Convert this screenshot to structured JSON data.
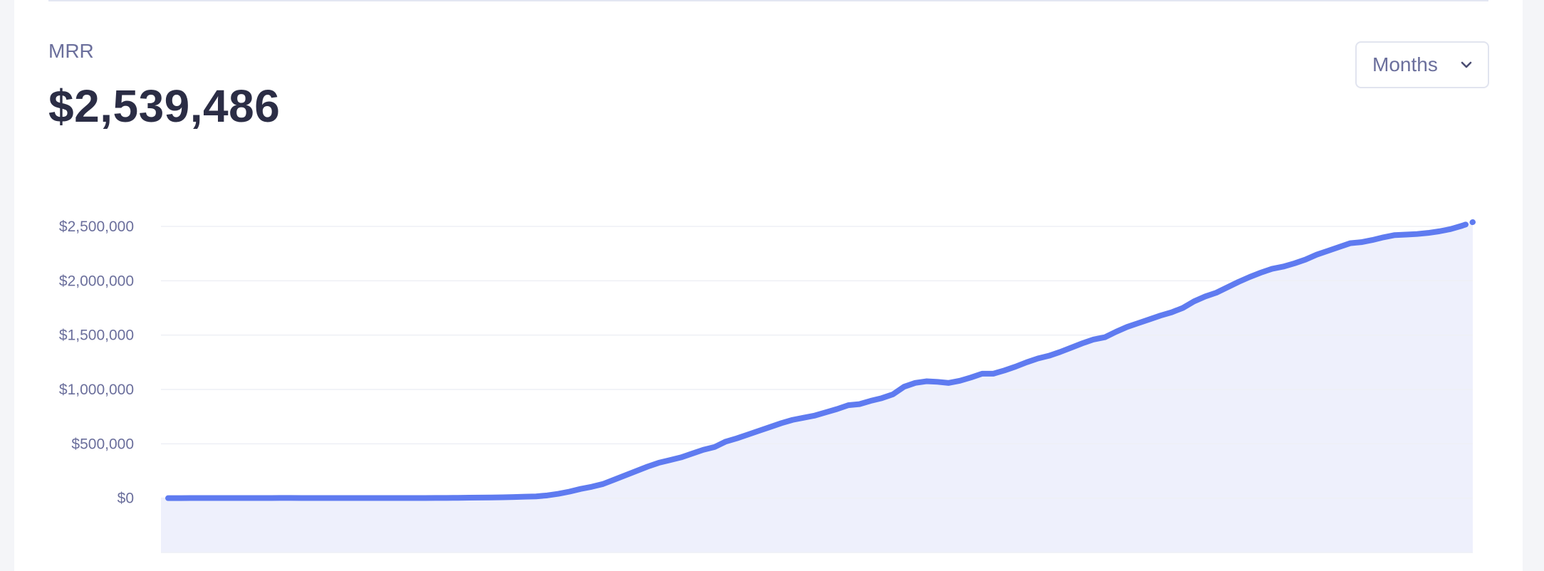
{
  "metric": {
    "label": "MRR",
    "value": "$2,539,486"
  },
  "period_select": {
    "selected": "Months",
    "icon": "chevron-down-icon"
  },
  "colors": {
    "line": "#5f7bf0",
    "area": "#eef0fc",
    "grid": "#eeeff5"
  },
  "chart_data": {
    "type": "area",
    "title": "",
    "xlabel": "",
    "ylabel": "",
    "ylim": [
      -500000,
      2500000
    ],
    "yticks": [
      0,
      500000,
      1000000,
      1500000,
      2000000,
      2500000
    ],
    "ytick_labels": [
      "$0",
      "$500,000",
      "$1,000,000",
      "$1,500,000",
      "$2,000,000",
      "$2,500,000"
    ],
    "grid": true,
    "legend": "none",
    "last_point_dashed": true,
    "series": [
      {
        "values": [
          0,
          0,
          1000,
          1000,
          1000,
          1000,
          1000,
          1000,
          1000,
          1000,
          2000,
          2000,
          1000,
          1000,
          1000,
          1000,
          1000,
          1000,
          1000,
          1000,
          1000,
          1000,
          1000,
          1000,
          2000,
          2000,
          3000,
          4000,
          5000,
          6000,
          8000,
          10000,
          13000,
          16000,
          25000,
          40000,
          60000,
          85000,
          105000,
          130000,
          170000,
          210000,
          250000,
          290000,
          325000,
          350000,
          375000,
          410000,
          445000,
          470000,
          520000,
          550000,
          585000,
          620000,
          655000,
          690000,
          720000,
          740000,
          760000,
          790000,
          820000,
          855000,
          865000,
          895000,
          920000,
          955000,
          1025000,
          1060000,
          1075000,
          1070000,
          1060000,
          1080000,
          1110000,
          1145000,
          1145000,
          1175000,
          1210000,
          1250000,
          1285000,
          1310000,
          1345000,
          1385000,
          1425000,
          1460000,
          1480000,
          1530000,
          1575000,
          1610000,
          1645000,
          1680000,
          1710000,
          1750000,
          1810000,
          1855000,
          1890000,
          1940000,
          1990000,
          2035000,
          2075000,
          2110000,
          2130000,
          2160000,
          2195000,
          2240000,
          2275000,
          2310000,
          2345000,
          2355000,
          2375000,
          2400000,
          2420000,
          2425000,
          2430000,
          2440000,
          2455000,
          2475000,
          2505000,
          2539486
        ]
      }
    ]
  }
}
